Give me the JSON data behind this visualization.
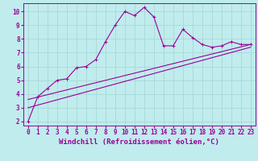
{
  "title": "",
  "xlabel": "Windchill (Refroidissement éolien,°C)",
  "ylabel": "",
  "bg_color": "#c0eced",
  "line_color": "#990099",
  "grid_color": "#a8d8d8",
  "xlim": [
    -0.5,
    23.5
  ],
  "ylim": [
    1.7,
    10.6
  ],
  "xticks": [
    0,
    1,
    2,
    3,
    4,
    5,
    6,
    7,
    8,
    9,
    10,
    11,
    12,
    13,
    14,
    15,
    16,
    17,
    18,
    19,
    20,
    21,
    22,
    23
  ],
  "yticks": [
    2,
    3,
    4,
    5,
    6,
    7,
    8,
    9,
    10
  ],
  "series1_x": [
    0,
    1,
    2,
    3,
    4,
    5,
    6,
    7,
    8,
    9,
    10,
    11,
    12,
    13,
    14,
    15,
    16,
    17,
    18,
    19,
    20,
    21,
    22,
    23
  ],
  "series1_y": [
    2.0,
    3.8,
    4.4,
    5.0,
    5.1,
    5.9,
    6.0,
    6.5,
    7.8,
    9.0,
    10.0,
    9.7,
    10.3,
    9.6,
    7.5,
    7.5,
    8.7,
    8.1,
    7.6,
    7.4,
    7.5,
    7.8,
    7.6,
    7.6
  ],
  "series2_x": [
    0,
    23
  ],
  "series2_y": [
    3.6,
    7.6
  ],
  "series3_x": [
    0,
    23
  ],
  "series3_y": [
    3.0,
    7.4
  ],
  "marker_size": 2.5,
  "linewidth": 0.8,
  "tick_fontsize": 5.5,
  "xlabel_fontsize": 6.5
}
